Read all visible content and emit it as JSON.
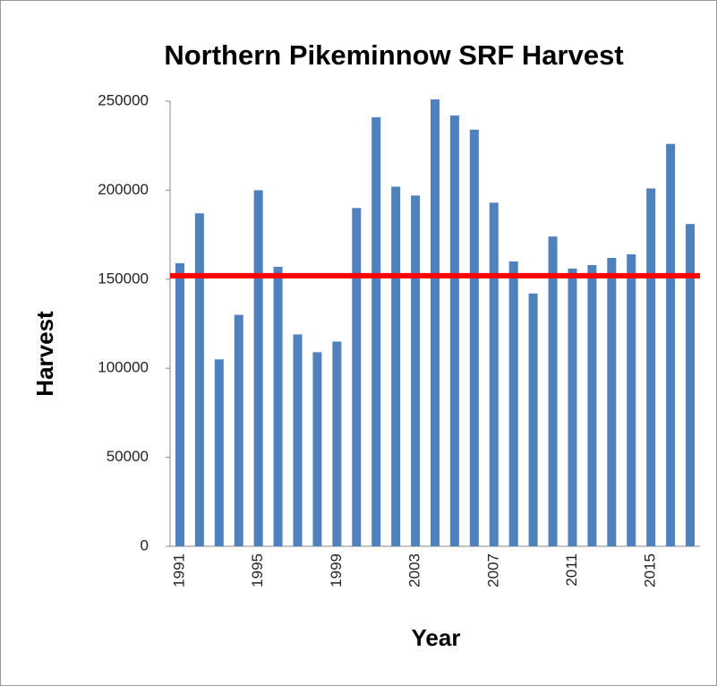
{
  "chart_data": {
    "type": "bar",
    "title": "Northern Pikeminnow SRF Harvest",
    "x_label": "Year",
    "y_label": "Harvest",
    "categories": [
      "1991",
      null,
      null,
      null,
      "1995",
      null,
      null,
      null,
      "1999",
      null,
      null,
      null,
      "2003",
      null,
      null,
      null,
      "2007",
      null,
      null,
      null,
      "2011",
      null,
      null,
      null,
      "2015",
      null,
      null
    ],
    "values": [
      159000,
      187000,
      105000,
      130000,
      200000,
      157000,
      119000,
      109000,
      115000,
      190000,
      241000,
      202000,
      197000,
      251000,
      242000,
      234000,
      193000,
      160000,
      142000,
      174000,
      156000,
      158000,
      162000,
      164000,
      201000,
      226000,
      181000
    ],
    "color": "#4f81bd",
    "reference_line": {
      "value": 152000,
      "color": "#ff0000"
    },
    "ylim": [
      0,
      250000
    ],
    "yticks": [
      0,
      50000,
      100000,
      150000,
      200000,
      250000
    ],
    "grid": false
  }
}
